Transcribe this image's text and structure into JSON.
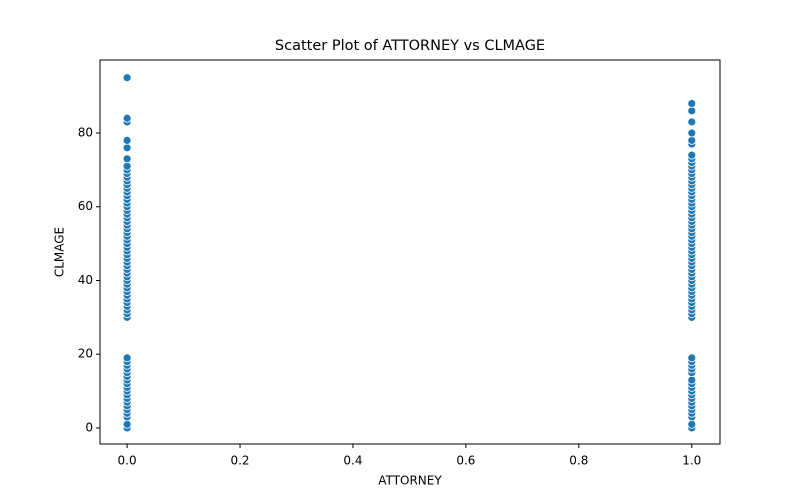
{
  "chart_data": {
    "type": "scatter",
    "title": "Scatter Plot of ATTORNEY vs CLMAGE",
    "x_label": "ATTORNEY",
    "y_label": "CLMAGE",
    "color": "#1f77b4",
    "grid": false,
    "xlim": [
      -0.048,
      1.05
    ],
    "ylim": [
      -4.35,
      99.8
    ],
    "xticks": [
      {
        "value": 0,
        "label": "0.0"
      },
      {
        "value": 0.2,
        "label": "0.2"
      },
      {
        "value": 0.4,
        "label": "0.4"
      },
      {
        "value": 0.6,
        "label": "0.6"
      },
      {
        "value": 0.8,
        "label": "0.8"
      },
      {
        "value": 1,
        "label": "1.0"
      }
    ],
    "yticks": [
      0,
      20,
      40,
      60,
      80
    ],
    "x": [
      0,
      0,
      0,
      0,
      0,
      0,
      0,
      0,
      0,
      0,
      0,
      0,
      0,
      0,
      0,
      0,
      0,
      0,
      0,
      0,
      0,
      0,
      0,
      0,
      0,
      0,
      0,
      0,
      0,
      0,
      0,
      0,
      0,
      0,
      0,
      0,
      0,
      0,
      0,
      0,
      0,
      0,
      0,
      0,
      0,
      0,
      0,
      0,
      0,
      0,
      0,
      0,
      0,
      0,
      0,
      0,
      0,
      0,
      0,
      0,
      0,
      0,
      0,
      0,
      0,
      0,
      0,
      1,
      1,
      1,
      1,
      1,
      1,
      1,
      1,
      1,
      1,
      1,
      1,
      1,
      1,
      1,
      1,
      1,
      1,
      1,
      1,
      1,
      1,
      1,
      1,
      1,
      1,
      1,
      1,
      1,
      1,
      1,
      1,
      1,
      1,
      1,
      1,
      1,
      1,
      1,
      1,
      1,
      1,
      1,
      1,
      1,
      1,
      1,
      1,
      1,
      1,
      1,
      1,
      1,
      1,
      1,
      1,
      1,
      1,
      1,
      1,
      1,
      1,
      1,
      1,
      1,
      1,
      1,
      1,
      1
    ],
    "values": [
      0,
      1,
      3,
      4,
      5,
      6,
      7,
      8,
      9,
      10,
      11,
      12,
      13,
      14,
      15,
      16,
      17,
      18,
      19,
      30,
      31,
      32,
      33,
      34,
      35,
      36,
      37,
      38,
      39,
      40,
      41,
      42,
      43,
      44,
      45,
      46,
      47,
      48,
      49,
      50,
      51,
      52,
      53,
      54,
      55,
      56,
      57,
      58,
      59,
      60,
      61,
      62,
      63,
      64,
      65,
      66,
      67,
      68,
      69,
      70,
      71,
      73,
      76,
      78,
      83,
      84,
      95,
      0,
      1,
      3,
      4,
      5,
      6,
      7,
      8,
      9,
      10,
      11,
      12,
      13,
      15,
      16,
      17,
      18,
      19,
      30,
      31,
      32,
      33,
      34,
      35,
      36,
      37,
      38,
      39,
      40,
      41,
      42,
      43,
      44,
      45,
      46,
      47,
      48,
      49,
      50,
      51,
      52,
      53,
      54,
      55,
      56,
      57,
      58,
      59,
      60,
      61,
      62,
      63,
      64,
      65,
      66,
      67,
      68,
      69,
      70,
      71,
      72,
      73,
      74,
      77,
      78,
      80,
      83,
      86,
      88
    ]
  }
}
